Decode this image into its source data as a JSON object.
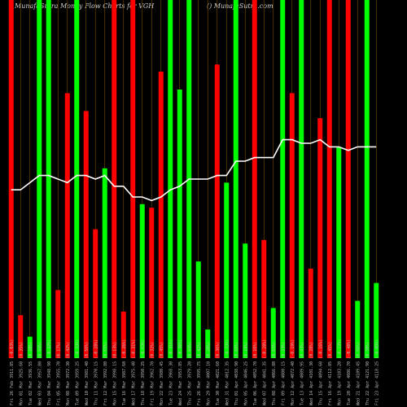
{
  "title_left": "MunafaSutra  Money Flow  Charts for VGH",
  "title_right": "() MunafaSutra.com",
  "colors": {
    "background": "#000000",
    "up": "#00ff00",
    "down": "#ff0000",
    "grid": "#7a4a00",
    "line": "#ffffff",
    "label": "#bdbdbd"
  },
  "chart_data": {
    "type": "bar",
    "ylim": [
      0,
      100
    ],
    "categories": [
      "Fri 26 Feb",
      "Mon 01 Mar",
      "Tue 02 Mar",
      "Wed 03 Mar",
      "Thu 04 Mar",
      "Fri 05 Mar",
      "Mon 08 Mar",
      "Tue 09 Mar",
      "Wed 10 Mar",
      "Thu 11 Mar",
      "Fri 12 Mar",
      "Mon 15 Mar",
      "Tue 16 Mar",
      "Wed 17 Mar",
      "Thu 18 Mar",
      "Fri 19 Mar",
      "Mon 22 Mar",
      "Tue 23 Mar",
      "Wed 24 Mar",
      "Thu 25 Mar",
      "Fri 26 Mar",
      "Mon 29 Mar",
      "Tue 30 Mar",
      "Wed 31 Mar",
      "Thu 01 Apr",
      "Mon 05 Apr",
      "Tue 06 Apr",
      "Wed 07 Apr",
      "Thu 08 Apr",
      "Fri 09 Apr",
      "Mon 12 Apr",
      "Tue 13 Apr",
      "Wed 14 Apr",
      "Thu 15 Apr",
      "Fri 16 Apr",
      "Mon 19 Apr",
      "Tue 20 Apr",
      "Wed 21 Apr",
      "Thu 22 Apr",
      "Fri 23 Apr"
    ],
    "x_labels": [
      "3911.85 (-0.03%)",
      "3925.60 (0.35%)",
      "3936.55 (0.28%)",
      "3957.80 (0.54%)",
      "3948.90 (-0.22%)",
      "3955.70 (0.17%)",
      "3972.30 (0.42%)",
      "3959.25 (-0.33%)",
      "3981.40 (0.56%)",
      "3970.15 (-0.28%)",
      "3992.80 (0.57%)",
      "3998.15 (0.13%)",
      "3987.60 (-0.26%)",
      "3975.40 (-0.31%)",
      "3950.25 (-0.63%)",
      "3962.70 (0.32%)",
      "3980.45 (0.45%)",
      "3968.30 (-0.31%)",
      "3953.85 (-0.36%)",
      "3979.20 (0.64%)",
      "3995.75 (0.42%)",
      "4007.10 (0.28%)",
      "4021.60 (0.36%)",
      "4012.35 (-0.23%)",
      "4038.90 (0.66%)",
      "4046.25 (0.18%)",
      "4052.70 (0.16%)",
      "4041.35 (-0.28%)",
      "4066.80 (0.63%)",
      "4080.15 (0.33%)",
      "4072.40 (-0.19%)",
      "4089.95 (0.43%)",
      "4101.30 (0.28%)",
      "4094.60 (-0.16%)",
      "4112.85 (0.45%)",
      "4103.20 (-0.23%)",
      "4086.70 (-0.40%)",
      "4109.45 (0.56%)",
      "4121.90 (0.30%)",
      "4118.25 (-0.09%)"
    ],
    "bar_colors": [
      "down",
      "down",
      "up",
      "up",
      "up",
      "down",
      "down",
      "up",
      "down",
      "down",
      "up",
      "down",
      "down",
      "down",
      "up",
      "down",
      "down",
      "up",
      "up",
      "up",
      "up",
      "up",
      "down",
      "up",
      "up",
      "up",
      "down",
      "down",
      "up",
      "up",
      "down",
      "up",
      "down",
      "down",
      "down",
      "up",
      "down",
      "up",
      "up",
      "up"
    ],
    "series": [
      {
        "values": [
          100,
          12,
          6,
          100,
          100,
          19,
          74,
          100,
          69,
          36,
          53,
          100,
          13,
          100,
          43,
          42,
          80,
          100,
          75,
          100,
          27,
          8,
          82,
          49,
          100,
          32,
          100,
          33,
          14,
          100,
          74,
          100,
          25,
          67,
          100,
          59,
          100,
          16,
          100,
          21
        ]
      },
      {
        "values": [
          47,
          47,
          49,
          51,
          51,
          50,
          49,
          51,
          51,
          50,
          51,
          48,
          48,
          45,
          45,
          44,
          45,
          47,
          48,
          50,
          50,
          50,
          51,
          51,
          55,
          55,
          56,
          56,
          56,
          61,
          61,
          60,
          60,
          61,
          59,
          59,
          58,
          59,
          59,
          59
        ]
      }
    ]
  }
}
